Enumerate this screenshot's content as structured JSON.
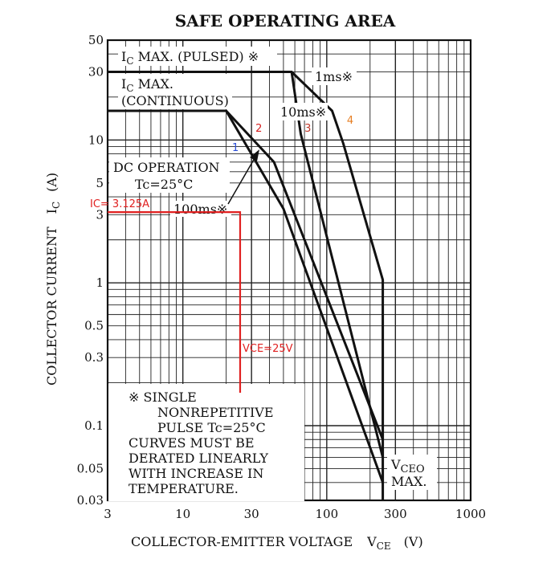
{
  "chart_data": {
    "type": "line",
    "title": "SAFE OPERATING AREA",
    "xlabel": "COLLECTOR-EMITTER VOLTAGE",
    "xlabel_symbol": "V",
    "xlabel_sub": "CE",
    "xlabel_unit": "(V)",
    "ylabel": "COLLECTOR CURRENT",
    "ylabel_symbol": "I",
    "ylabel_sub": "C",
    "ylabel_unit": "(A)",
    "xscale": "log",
    "yscale": "log",
    "xlim": [
      3,
      1000
    ],
    "ylim": [
      0.03,
      50
    ],
    "grid": true,
    "xticks": [
      {
        "value": 3,
        "label": "3"
      },
      {
        "value": 10,
        "label": "10"
      },
      {
        "value": 30,
        "label": "30"
      },
      {
        "value": 100,
        "label": "100"
      },
      {
        "value": 300,
        "label": "300"
      },
      {
        "value": 1000,
        "label": "1000"
      }
    ],
    "yticks": [
      {
        "value": 50,
        "label": "50"
      },
      {
        "value": 30,
        "label": "30"
      },
      {
        "value": 10,
        "label": "10"
      },
      {
        "value": 5,
        "label": "5"
      },
      {
        "value": 3,
        "label": "3"
      },
      {
        "value": 1,
        "label": "1"
      },
      {
        "value": 0.5,
        "label": "0.5"
      },
      {
        "value": 0.3,
        "label": "0.3"
      },
      {
        "value": 0.1,
        "label": "0.1"
      },
      {
        "value": 0.05,
        "label": "0.05"
      },
      {
        "value": 0.03,
        "label": "0.03"
      }
    ],
    "series": [
      {
        "name": "1ms※",
        "x": [
          3,
          57,
          109,
          130,
          245,
          245
        ],
        "y": [
          30,
          30,
          16,
          9.5,
          1.05,
          0.03
        ]
      },
      {
        "name": "10ms※",
        "x": [
          3,
          57,
          66,
          245
        ],
        "y": [
          30,
          30,
          11,
          0.06
        ]
      },
      {
        "name": "100ms※",
        "x": [
          3,
          20,
          43,
          245
        ],
        "y": [
          16,
          16,
          7,
          0.08
        ]
      },
      {
        "name": "DC OPERATION",
        "x": [
          3,
          20,
          50,
          245
        ],
        "y": [
          16,
          16,
          3.3,
          0.04
        ]
      }
    ],
    "annotations": {
      "ic_max_pulsed": {
        "main": "I",
        "sub": "C",
        "rest": " MAX. (PULSED) ※"
      },
      "ic_max_continuous": {
        "line1_main": "I",
        "line1_sub": "C",
        "line1_rest": " MAX.",
        "line2": "(CONTINUOUS)"
      },
      "dc_operation": {
        "line1": "DC OPERATION",
        "line2": "Tc=25°C"
      },
      "vceo_max": {
        "main": "V",
        "sub": "CEO",
        "line2": "MAX."
      },
      "curve_numbers": [
        {
          "label": "1",
          "x": 22,
          "y": 8.4,
          "color": "#2b4fd8"
        },
        {
          "label": "2",
          "x": 32,
          "y": 11.4,
          "color": "#d62020"
        },
        {
          "label": "3",
          "x": 70,
          "y": 11.4,
          "color": "#c0392b"
        },
        {
          "label": "4",
          "x": 138,
          "y": 13,
          "color": "#e67e22"
        }
      ],
      "operating_point": {
        "vce": 25,
        "ic": 3.125,
        "ic_label": "IC= 3.125A",
        "vce_label": "VCE=25V",
        "color": "#e02020"
      },
      "note_lines": [
        "※  SINGLE",
        "NONREPETITIVE",
        "PULSE Tc=25°C",
        "CURVES MUST BE",
        "DERATED LINEARLY",
        "WITH INCREASE IN",
        "TEMPERATURE."
      ]
    }
  }
}
